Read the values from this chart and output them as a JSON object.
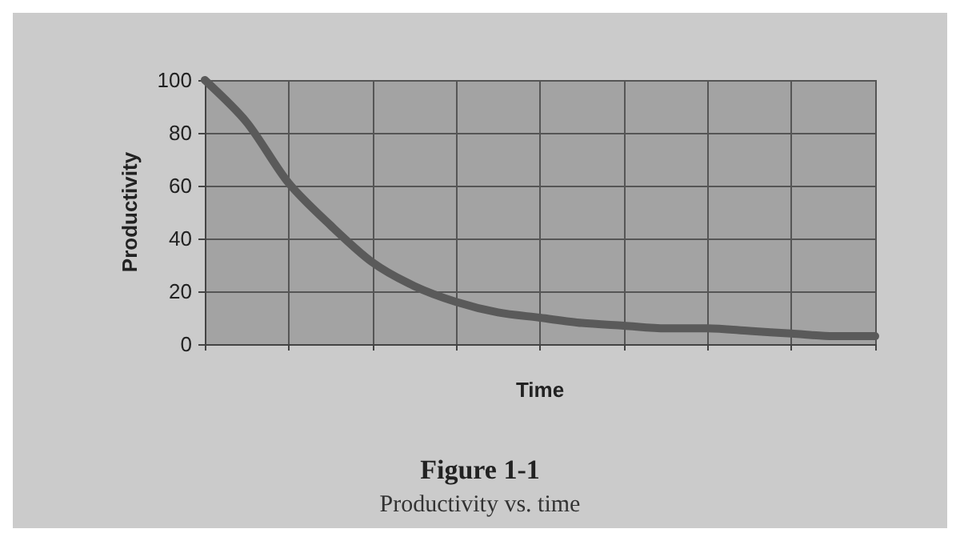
{
  "chart_data": {
    "type": "line",
    "title": "Figure 1-1",
    "subtitle": "Productivity vs. time",
    "xlabel": "Time",
    "ylabel": "Productivity",
    "categories": [
      null,
      null,
      null,
      null,
      null,
      null,
      null,
      null,
      null,
      null,
      null,
      null,
      null,
      null,
      null,
      null,
      null
    ],
    "series": [
      {
        "color": "#5a5a5a",
        "values": [
          100,
          84,
          61,
          45,
          31,
          22,
          16,
          12,
          10,
          8,
          7,
          6,
          6,
          5,
          4,
          3,
          3
        ]
      }
    ],
    "ylim": [
      0,
      100
    ],
    "yticks": [
      0,
      20,
      40,
      60,
      80,
      100
    ],
    "grid": true,
    "marker": "none",
    "line_style": "solid"
  }
}
